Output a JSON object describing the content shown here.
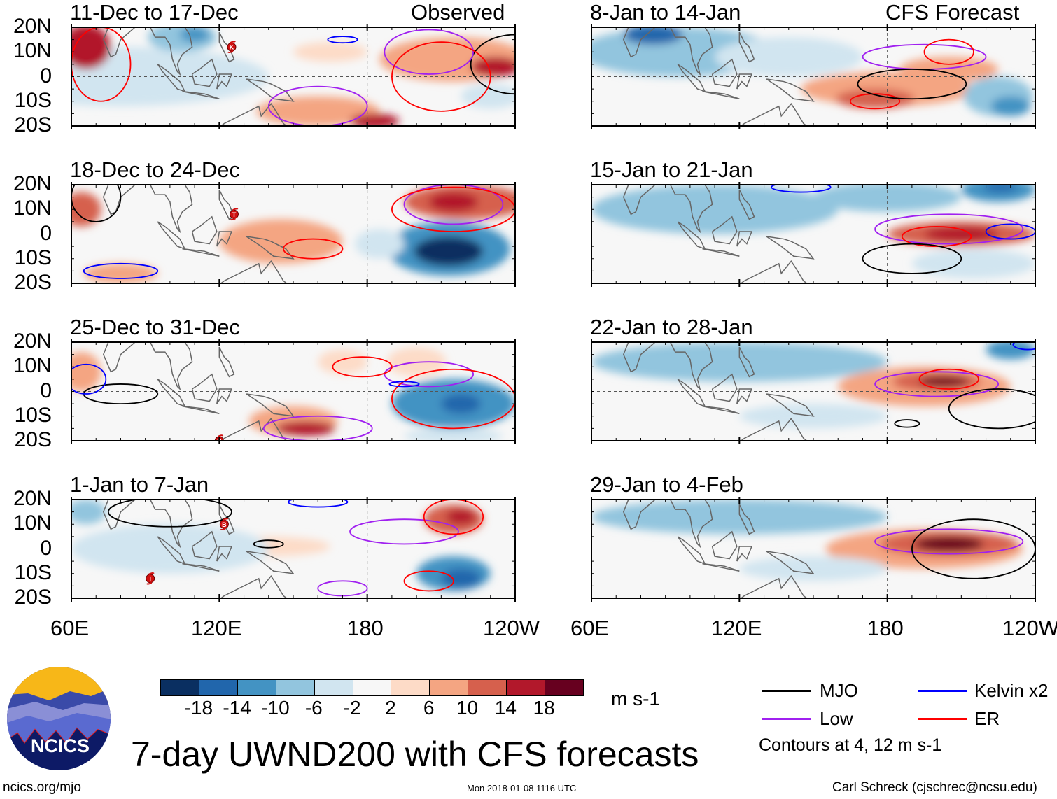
{
  "header": {
    "left_label": "Observed",
    "right_label": "CFS Forecast"
  },
  "lat_labels": [
    "20N",
    "10N",
    "0",
    "10S",
    "20S"
  ],
  "lon_labels": [
    "60E",
    "120E",
    "180",
    "120W"
  ],
  "colors": {
    "levels": [
      "#0a2f61",
      "#2166ac",
      "#4393c3",
      "#92c5de",
      "#d1e5f0",
      "#f7f7f7",
      "#fddbc7",
      "#f4a582",
      "#d6604d",
      "#b2182b",
      "#67001f"
    ],
    "MJO": "#000000",
    "Low": "#a020f0",
    "Kelvin": "#0000ff",
    "ER": "#ff0000",
    "coast": "#666666"
  },
  "panels": [
    {
      "title": "11-Dec to 17-Dec",
      "storms": [
        {
          "lon": 125,
          "lat": 12,
          "label": "K"
        }
      ],
      "features": [
        [
          80,
          0,
          60,
          12,
          -3
        ],
        [
          66,
          12,
          10,
          9,
          16
        ],
        [
          105,
          16,
          14,
          6,
          -8
        ],
        [
          110,
          17,
          6,
          3,
          -12
        ],
        [
          215,
          7,
          30,
          9,
          8
        ],
        [
          232,
          4,
          10,
          4,
          14
        ],
        [
          160,
          -14,
          25,
          6,
          6
        ],
        [
          183,
          -18,
          10,
          3,
          14
        ],
        [
          230,
          -8,
          12,
          5,
          -6
        ],
        [
          165,
          10,
          15,
          4,
          4
        ]
      ],
      "contours": [
        [
          240,
          5,
          18,
          12,
          "MJO"
        ],
        [
          205,
          10,
          18,
          9,
          "Low"
        ],
        [
          160,
          -12,
          20,
          8,
          "Low"
        ],
        [
          72,
          5,
          12,
          15,
          "ER"
        ],
        [
          210,
          0,
          20,
          14,
          "ER"
        ],
        [
          170,
          15,
          6,
          1.3,
          "Kelvin"
        ]
      ]
    },
    {
      "title": "8-Jan to 14-Jan",
      "storms": [],
      "features": [
        [
          95,
          10,
          40,
          10,
          -10
        ],
        [
          85,
          17,
          12,
          4,
          -18
        ],
        [
          140,
          8,
          30,
          8,
          -6
        ],
        [
          180,
          -5,
          35,
          7,
          6
        ],
        [
          175,
          -9,
          16,
          4,
          12
        ],
        [
          205,
          3,
          20,
          5,
          6
        ],
        [
          225,
          -8,
          14,
          8,
          -10
        ],
        [
          230,
          -12,
          8,
          4,
          -14
        ]
      ],
      "contours": [
        [
          195,
          8,
          25,
          5,
          "Low"
        ],
        [
          205,
          10,
          10,
          5,
          "ER"
        ],
        [
          175,
          -10,
          10,
          3,
          "ER"
        ],
        [
          190,
          -3,
          22,
          6,
          "MJO"
        ]
      ]
    },
    {
      "title": "18-Dec to 24-Dec",
      "storms": [
        {
          "lon": 126,
          "lat": 8,
          "label": "T"
        }
      ],
      "features": [
        [
          64,
          10,
          8,
          7,
          12
        ],
        [
          220,
          13,
          25,
          7,
          12
        ],
        [
          215,
          13,
          10,
          4,
          16
        ],
        [
          145,
          -3,
          25,
          9,
          6
        ],
        [
          213,
          -6,
          25,
          11,
          -12
        ],
        [
          213,
          -7,
          14,
          6,
          -20
        ],
        [
          185,
          -4,
          10,
          6,
          -6
        ],
        [
          80,
          -16,
          15,
          4,
          6
        ]
      ],
      "contours": [
        [
          215,
          12,
          20,
          8,
          "Low"
        ],
        [
          215,
          10,
          25,
          9,
          "ER"
        ],
        [
          158,
          -6,
          12,
          4,
          "ER"
        ],
        [
          80,
          -15,
          15,
          3,
          "Kelvin"
        ],
        [
          70,
          15,
          10,
          10,
          "MJO"
        ]
      ]
    },
    {
      "title": "15-Jan to 21-Jan",
      "storms": [],
      "features": [
        [
          110,
          10,
          50,
          10,
          -8
        ],
        [
          180,
          15,
          30,
          6,
          -8
        ],
        [
          225,
          18,
          15,
          5,
          -14
        ],
        [
          226,
          19,
          7,
          2,
          -18
        ],
        [
          210,
          0,
          30,
          5,
          10
        ],
        [
          210,
          0,
          15,
          3,
          16
        ],
        [
          215,
          -12,
          25,
          6,
          -6
        ]
      ],
      "contours": [
        [
          205,
          2,
          30,
          6,
          "Low"
        ],
        [
          200,
          -1,
          14,
          4,
          "ER"
        ],
        [
          230,
          1,
          10,
          3,
          "Kelvin"
        ],
        [
          190,
          -10,
          20,
          6,
          "MJO"
        ],
        [
          145,
          19,
          12,
          2,
          "Kelvin"
        ]
      ]
    },
    {
      "title": "25-Dec to 31-Dec",
      "storms": [
        {
          "lon": 120,
          "lat": -20,
          "label": "H"
        }
      ],
      "features": [
        [
          64,
          8,
          8,
          8,
          6
        ],
        [
          150,
          -12,
          18,
          6,
          8
        ],
        [
          155,
          -15,
          12,
          3,
          14
        ],
        [
          215,
          -5,
          25,
          10,
          -12
        ],
        [
          218,
          -5,
          8,
          4,
          -18
        ],
        [
          170,
          12,
          10,
          5,
          4
        ],
        [
          200,
          12,
          12,
          6,
          4
        ],
        [
          215,
          -18,
          20,
          3,
          -6
        ]
      ],
      "contours": [
        [
          205,
          7,
          18,
          5,
          "Low"
        ],
        [
          178,
          10,
          12,
          4,
          "ER"
        ],
        [
          160,
          -15,
          22,
          5,
          "Low"
        ],
        [
          215,
          -3,
          25,
          12,
          "ER"
        ],
        [
          80,
          -1,
          15,
          4,
          "MJO"
        ],
        [
          66,
          5,
          8,
          6,
          "Kelvin"
        ],
        [
          195,
          3,
          6,
          1,
          "Kelvin"
        ]
      ]
    },
    {
      "title": "22-Jan to 28-Jan",
      "storms": [],
      "features": [
        [
          120,
          12,
          60,
          8,
          -8
        ],
        [
          230,
          17,
          10,
          4,
          -12
        ],
        [
          195,
          2,
          35,
          8,
          6
        ],
        [
          200,
          4,
          18,
          4,
          12
        ],
        [
          203,
          4,
          10,
          2,
          18
        ],
        [
          150,
          -10,
          30,
          5,
          -3
        ]
      ],
      "contours": [
        [
          200,
          3,
          25,
          5,
          "Low"
        ],
        [
          205,
          5,
          12,
          4,
          "ER"
        ],
        [
          225,
          -7,
          20,
          8,
          "MJO"
        ],
        [
          188,
          -13,
          5,
          1.5,
          "MJO"
        ],
        [
          237,
          19,
          6,
          2,
          "Kelvin"
        ]
      ]
    },
    {
      "title": "1-Jan to 7-Jan",
      "storms": [
        {
          "lon": 122,
          "lat": 10,
          "label": "B"
        },
        {
          "lon": 92,
          "lat": -12,
          "label": "I"
        }
      ],
      "features": [
        [
          66,
          15,
          8,
          5,
          -10
        ],
        [
          215,
          12,
          12,
          6,
          10
        ],
        [
          218,
          13,
          6,
          3,
          16
        ],
        [
          215,
          -10,
          15,
          7,
          -12
        ],
        [
          218,
          -12,
          8,
          4,
          -18
        ],
        [
          140,
          1,
          25,
          4,
          4
        ],
        [
          100,
          0,
          40,
          10,
          -3
        ]
      ],
      "contours": [
        [
          195,
          7,
          22,
          5,
          "Low"
        ],
        [
          215,
          13,
          12,
          7,
          "ER"
        ],
        [
          205,
          -13,
          10,
          4,
          "ER"
        ],
        [
          170,
          -16,
          10,
          3,
          "Low"
        ],
        [
          100,
          15,
          25,
          6,
          "MJO"
        ],
        [
          140,
          2,
          6,
          1.5,
          "MJO"
        ],
        [
          160,
          19,
          12,
          2,
          "Kelvin"
        ]
      ]
    },
    {
      "title": "29-Jan to 4-Feb",
      "storms": [],
      "features": [
        [
          120,
          13,
          60,
          7,
          -8
        ],
        [
          195,
          0,
          40,
          8,
          6
        ],
        [
          205,
          2,
          28,
          5,
          12
        ],
        [
          205,
          2,
          14,
          3,
          18
        ],
        [
          150,
          -8,
          30,
          5,
          -3
        ]
      ],
      "contours": [
        [
          205,
          3,
          30,
          5,
          "Low"
        ],
        [
          215,
          0,
          25,
          12,
          "MJO"
        ]
      ]
    }
  ],
  "colorbar": {
    "labels": [
      "-18",
      "-14",
      "-10",
      "-6",
      "-2",
      "2",
      "6",
      "10",
      "14",
      "18"
    ],
    "units": "m s-1"
  },
  "legend": {
    "items": [
      {
        "key": "MJO",
        "label": "MJO"
      },
      {
        "key": "Kelvin",
        "label": "Kelvin x2"
      },
      {
        "key": "Low",
        "label": "Low"
      },
      {
        "key": "ER",
        "label": "ER"
      }
    ],
    "note": "Contours at 4, 12 m s-1"
  },
  "footer": {
    "logo_text": "NCICS",
    "title": "7-day UWND200 with CFS forecasts",
    "url": "ncics.org/mjo",
    "timestamp": "Mon 2018-01-08 1116 UTC",
    "credit": "Carl Schreck (cjschrec@ncsu.edu)"
  }
}
